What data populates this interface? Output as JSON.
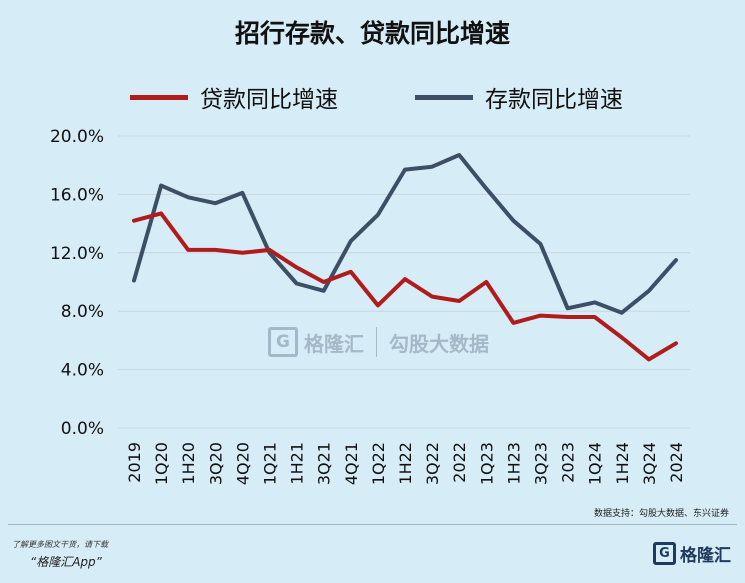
{
  "colors": {
    "loan": "#b01c1c",
    "deposit": "#3d4f66",
    "grid": "#c9d7e0",
    "background": "#d6ecf7"
  },
  "chart_data": {
    "type": "line",
    "title": "招行存款、贷款同比增速",
    "xlabel": "",
    "ylabel": "",
    "categories": [
      "2019",
      "1Q20",
      "1H20",
      "3Q20",
      "4Q20",
      "1Q21",
      "1H21",
      "3Q21",
      "4Q21",
      "1Q22",
      "1H22",
      "3Q22",
      "2022",
      "1Q23",
      "1H23",
      "3Q23",
      "2023",
      "1Q24",
      "1H24",
      "3Q24",
      "2024"
    ],
    "ylim": [
      0,
      20
    ],
    "yticks": [
      "0.0%",
      "4.0%",
      "8.0%",
      "12.0%",
      "16.0%",
      "20.0%"
    ],
    "ytick_values": [
      0,
      4,
      8,
      12,
      16,
      20
    ],
    "grid": true,
    "legend_position": "top",
    "series": [
      {
        "name": "贷款同比增速",
        "color": "#b01c1c",
        "values": [
          14.2,
          14.7,
          12.2,
          12.2,
          12.0,
          12.2,
          11.0,
          10.0,
          10.7,
          8.4,
          10.2,
          9.0,
          8.7,
          10.0,
          7.2,
          7.7,
          7.6,
          7.6,
          6.2,
          4.7,
          5.8
        ]
      },
      {
        "name": "存款同比增速",
        "color": "#3d4f66",
        "values": [
          10.1,
          16.6,
          15.8,
          15.4,
          16.1,
          12.0,
          9.9,
          9.4,
          12.8,
          14.6,
          17.7,
          17.9,
          18.7,
          16.4,
          14.2,
          12.6,
          8.2,
          8.6,
          7.9,
          9.4,
          11.5
        ]
      }
    ]
  },
  "watermark": {
    "logo_letter": "G",
    "brand": "格隆汇",
    "sub": "勾股大数据"
  },
  "source": "数据支持：勾股大数据、东兴证券",
  "footer": {
    "promo_line1": "了解更多图文干货，请下载",
    "promo_line2": "“格隆汇App”",
    "logo_letter": "G",
    "logo_text": "格隆汇"
  }
}
